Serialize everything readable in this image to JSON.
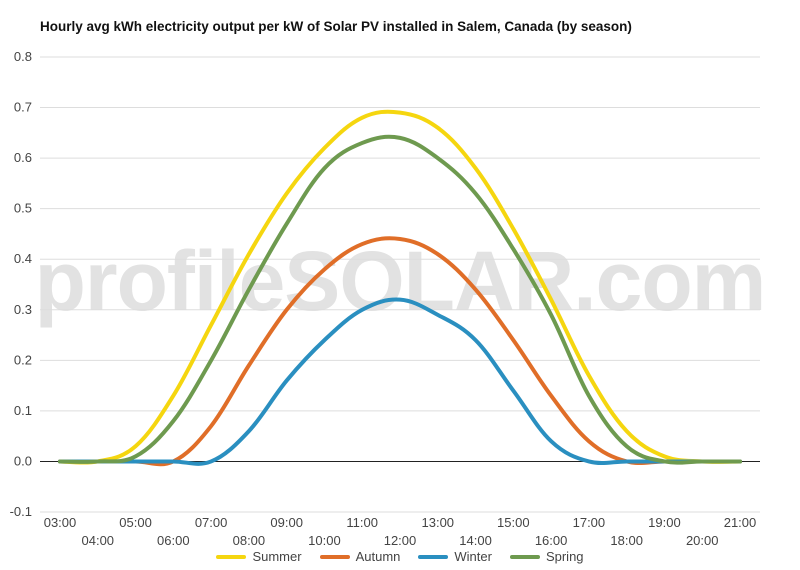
{
  "chart_data": {
    "type": "line",
    "title": "Hourly avg kWh electricity output per kW of Solar PV installed in Salem, Canada (by season)",
    "xlabel": "",
    "ylabel": "",
    "ylim": [
      -0.1,
      0.8
    ],
    "y_ticks": [
      "0.8",
      "0.7",
      "0.6",
      "0.5",
      "0.4",
      "0.3",
      "0.2",
      "0.1",
      "0.0",
      "-0.1"
    ],
    "y_tick_values": [
      0.8,
      0.7,
      0.6,
      0.5,
      0.4,
      0.3,
      0.2,
      0.1,
      0.0,
      -0.1
    ],
    "x_ticks_upper": [
      "03:00",
      "05:00",
      "07:00",
      "09:00",
      "11:00",
      "13:00",
      "15:00",
      "17:00",
      "19:00",
      "21:00"
    ],
    "x_ticks_lower": [
      "04:00",
      "06:00",
      "08:00",
      "10:00",
      "12:00",
      "14:00",
      "16:00",
      "18:00",
      "20:00"
    ],
    "x": [
      3,
      4,
      5,
      6,
      7,
      8,
      9,
      10,
      11,
      12,
      13,
      14,
      15,
      16,
      17,
      18,
      19,
      20,
      21
    ],
    "grid": true,
    "legend_position": "bottom",
    "watermark": "profileSOLAR.com",
    "series": [
      {
        "name": "Summer",
        "color": "#f5d60f",
        "values": [
          0.0,
          0.0,
          0.03,
          0.13,
          0.27,
          0.41,
          0.53,
          0.62,
          0.68,
          0.69,
          0.66,
          0.58,
          0.46,
          0.32,
          0.17,
          0.06,
          0.01,
          0.0,
          0.0
        ]
      },
      {
        "name": "Autumn",
        "color": "#e06e28",
        "values": [
          0.0,
          0.0,
          0.0,
          0.0,
          0.07,
          0.19,
          0.3,
          0.38,
          0.43,
          0.44,
          0.41,
          0.34,
          0.24,
          0.13,
          0.04,
          0.0,
          0.0,
          0.0,
          0.0
        ]
      },
      {
        "name": "Winter",
        "color": "#2a8fc0",
        "values": [
          0.0,
          0.0,
          0.0,
          0.0,
          0.0,
          0.06,
          0.16,
          0.24,
          0.3,
          0.32,
          0.29,
          0.24,
          0.14,
          0.04,
          0.0,
          0.0,
          0.0,
          0.0,
          0.0
        ]
      },
      {
        "name": "Spring",
        "color": "#6e9a4f",
        "values": [
          0.0,
          0.0,
          0.01,
          0.08,
          0.2,
          0.34,
          0.47,
          0.58,
          0.63,
          0.64,
          0.6,
          0.53,
          0.42,
          0.29,
          0.13,
          0.03,
          0.0,
          0.0,
          0.0
        ]
      }
    ]
  }
}
